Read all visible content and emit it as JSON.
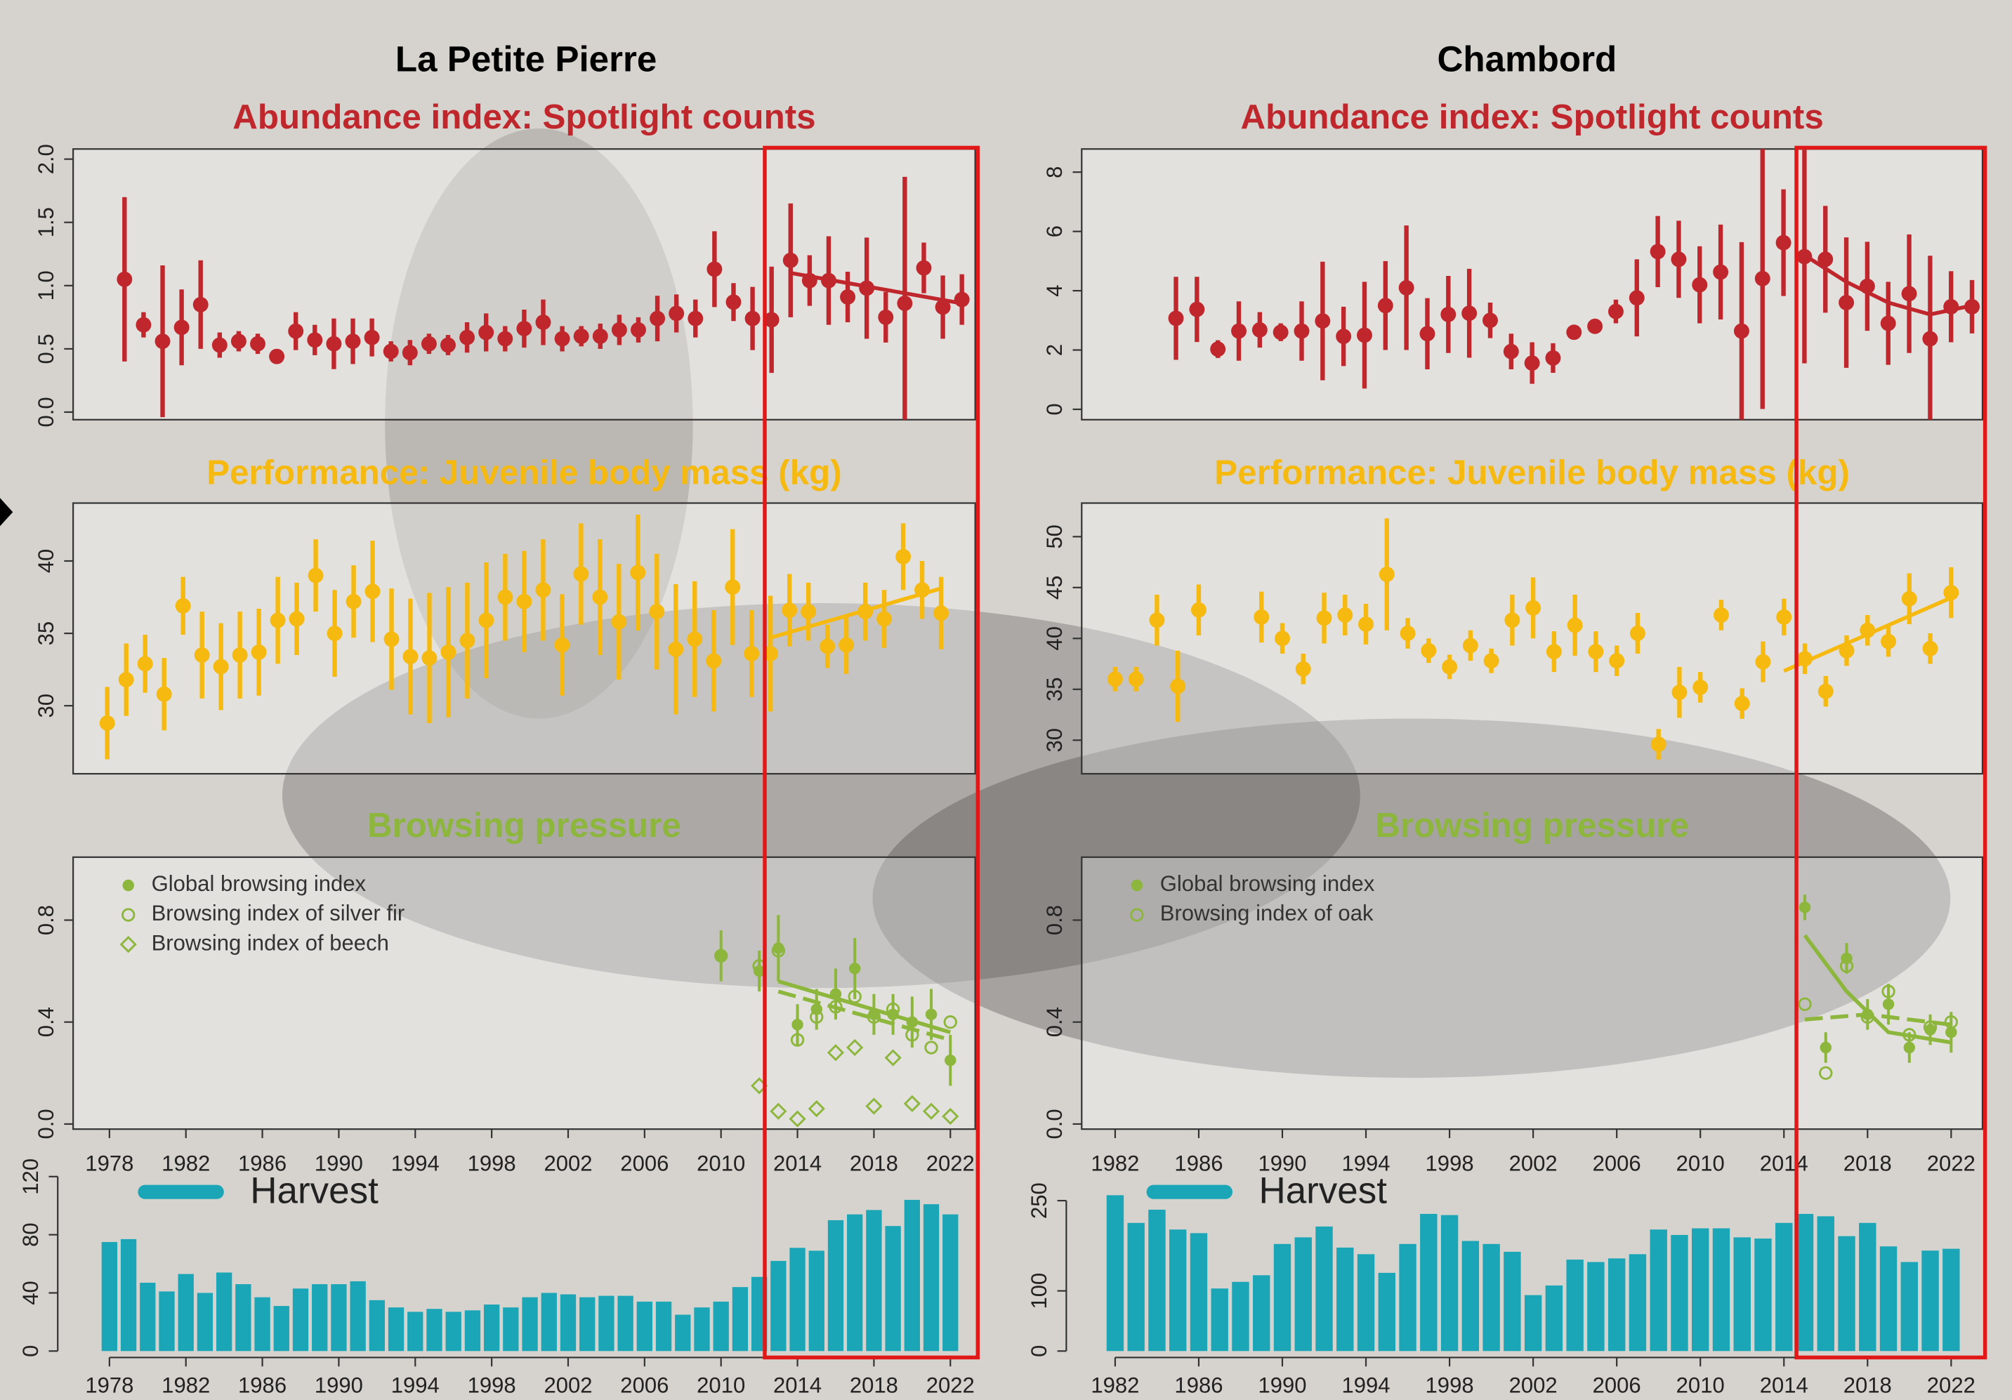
{
  "headers": [
    "La Petite Pierre",
    "Chambord"
  ],
  "chart_data": [
    {
      "type": "errorbar",
      "title": "Abundance index: Spotlight counts",
      "color": "#c0272d",
      "marker": "filled-circle",
      "x": [
        1978,
        1979,
        1980,
        1981,
        1982,
        1983,
        1984,
        1985,
        1986,
        1987,
        1988,
        1989,
        1990,
        1991,
        1992,
        1993,
        1994,
        1995,
        1996,
        1997,
        1998,
        1999,
        2000,
        2001,
        2002,
        2003,
        2004,
        2005,
        2006,
        2007,
        2008,
        2009,
        2010,
        2011,
        2012,
        2013,
        2014,
        2015,
        2016,
        2017,
        2018,
        2019,
        2020,
        2021,
        2022
      ],
      "values": [
        1.05,
        0.69,
        0.56,
        0.67,
        0.85,
        0.53,
        0.56,
        0.54,
        0.44,
        0.64,
        0.57,
        0.54,
        0.56,
        0.59,
        0.48,
        0.47,
        0.54,
        0.53,
        0.59,
        0.63,
        0.58,
        0.66,
        0.71,
        0.58,
        0.6,
        0.6,
        0.65,
        0.65,
        0.74,
        0.78,
        0.74,
        1.13,
        0.87,
        0.74,
        0.73,
        1.2,
        1.04,
        1.04,
        0.91,
        0.98,
        0.75,
        0.86,
        1.14,
        0.83,
        0.89
      ],
      "errors": [
        0.65,
        0.1,
        0.6,
        0.3,
        0.35,
        0.1,
        0.08,
        0.08,
        0.05,
        0.15,
        0.12,
        0.2,
        0.18,
        0.15,
        0.08,
        0.1,
        0.08,
        0.08,
        0.12,
        0.15,
        0.1,
        0.15,
        0.18,
        0.1,
        0.08,
        0.1,
        0.12,
        0.1,
        0.18,
        0.15,
        0.15,
        0.3,
        0.15,
        0.25,
        0.42,
        0.45,
        0.2,
        0.35,
        0.2,
        0.4,
        0.2,
        1.0,
        0.2,
        0.25,
        0.2
      ],
      "trend": {
        "x": [
          2013,
          2022
        ],
        "values": [
          1.1,
          0.86
        ]
      },
      "xlim": [
        1975.3,
        2022.7
      ],
      "ylim": [
        -0.06,
        2.08
      ],
      "yticks": [
        {
          "value": 0,
          "label": "0.0"
        },
        {
          "value": 0.5,
          "label": "0.5"
        },
        {
          "value": 1,
          "label": "1.0"
        },
        {
          "value": 1.5,
          "label": "1.5"
        },
        {
          "value": 2,
          "label": "2.0"
        }
      ]
    },
    {
      "type": "errorbar",
      "title": "Performance: Juvenile body mass (kg)",
      "color": "#f5b90f",
      "marker": "filled-circle",
      "x": [
        1978,
        1979,
        1980,
        1981,
        1982,
        1983,
        1984,
        1985,
        1986,
        1987,
        1988,
        1989,
        1990,
        1991,
        1992,
        1993,
        1994,
        1995,
        1996,
        1997,
        1998,
        1999,
        2000,
        2001,
        2002,
        2003,
        2004,
        2005,
        2006,
        2007,
        2008,
        2009,
        2010,
        2011,
        2012,
        2013,
        2014,
        2015,
        2016,
        2017,
        2018,
        2019,
        2020,
        2021,
        2022
      ],
      "values": [
        28.8,
        31.8,
        32.9,
        30.8,
        36.9,
        33.5,
        32.7,
        33.5,
        33.7,
        35.9,
        36.0,
        39.0,
        35.0,
        37.2,
        37.9,
        34.6,
        33.4,
        33.3,
        33.7,
        34.5,
        35.9,
        37.5,
        37.2,
        38,
        34.2,
        39.1,
        37.5,
        35.8,
        39.2,
        36.5,
        33.9,
        34.6,
        33.1,
        38.2,
        33.6,
        33.6,
        36.6,
        36.5,
        34.1,
        34.2,
        36.5,
        36.0,
        40.3,
        38,
        36.4
      ],
      "errors": [
        2.5,
        2.5,
        2,
        2.5,
        2,
        3,
        3,
        3,
        3,
        3,
        2.5,
        2.5,
        3,
        2.5,
        3.5,
        3.5,
        4,
        4.5,
        4.5,
        4,
        4,
        3,
        3.5,
        3.5,
        3.5,
        3.5,
        4,
        4,
        4,
        4,
        4.5,
        4,
        3.5,
        4,
        3,
        4,
        2.5,
        2,
        1.5,
        2,
        2,
        2,
        2.3,
        2,
        2.5
      ],
      "trend": {
        "x": [
          2013,
          2022
        ],
        "values": [
          34.7,
          38.1
        ]
      },
      "xlim": [
        1976.2,
        2023.8
      ],
      "ylim": [
        25.3,
        44.0
      ],
      "yticks": [
        30,
        35,
        40
      ]
    },
    {
      "type": "errorbar",
      "title": "Browsing pressure",
      "legend": "upper left",
      "xlim": [
        1976.1,
        2023.3
      ],
      "ylim": [
        -0.02,
        1.047
      ],
      "xticks": [
        1978,
        1982,
        1986,
        1990,
        1994,
        1998,
        2002,
        2006,
        2010,
        2014,
        2018,
        2022
      ],
      "yticks": [
        {
          "value": 0,
          "label": "0.0"
        },
        {
          "value": 0.4,
          "label": "0.4"
        },
        {
          "value": 0.8,
          "label": "0.8"
        }
      ],
      "series": [
        {
          "name": "Global browsing index",
          "color": "#8cb63c",
          "marker": "filled-circle",
          "x": [
            2010,
            2012,
            2013,
            2014,
            2015,
            2016,
            2017,
            2018,
            2019,
            2020,
            2021,
            2022
          ],
          "values": [
            0.66,
            0.6,
            0.69,
            0.39,
            0.45,
            0.51,
            0.61,
            0.43,
            0.43,
            0.4,
            0.43,
            0.25
          ],
          "errors": [
            0.1,
            0.08,
            0.13,
            0.08,
            0.08,
            0.1,
            0.12,
            0.08,
            0.08,
            0.1,
            0.1,
            0.1
          ],
          "trend": {
            "x": [
              2013,
              2022
            ],
            "values": [
              0.56,
              0.36
            ]
          }
        },
        {
          "name": "Browsing index of silver fir",
          "color": "#8cb63c",
          "marker": "open-circle",
          "trend_dash": true,
          "x": [
            2010,
            2012,
            2013,
            2014,
            2015,
            2016,
            2017,
            2018,
            2019,
            2020,
            2021,
            2022
          ],
          "values": [
            0.66,
            0.62,
            0.68,
            0.33,
            0.42,
            0.46,
            0.5,
            0.42,
            0.45,
            0.35,
            0.3,
            0.4
          ],
          "trend": {
            "x": [
              2013,
              2022
            ],
            "values": [
              0.52,
              0.33
            ]
          }
        },
        {
          "name": "Browsing index of beech",
          "color": "#8cb63c",
          "marker": "open-diamond",
          "x": [
            2012,
            2013,
            2014,
            2015,
            2016,
            2017,
            2018,
            2019,
            2020,
            2021,
            2022
          ],
          "values": [
            0.15,
            0.05,
            0.02,
            0.06,
            0.28,
            0.3,
            0.07,
            0.26,
            0.08,
            0.05,
            0.03
          ]
        }
      ]
    },
    {
      "type": "bar",
      "legend": "upper left",
      "x": [
        1978,
        1979,
        1980,
        1981,
        1982,
        1983,
        1984,
        1985,
        1986,
        1987,
        1988,
        1989,
        1990,
        1991,
        1992,
        1993,
        1994,
        1995,
        1996,
        1997,
        1998,
        1999,
        2000,
        2001,
        2002,
        2003,
        2004,
        2005,
        2006,
        2007,
        2008,
        2009,
        2010,
        2011,
        2012,
        2013,
        2014,
        2015,
        2016,
        2017,
        2018,
        2019,
        2020,
        2021,
        2022
      ],
      "series": [
        {
          "name": "Harvest",
          "color": "#1aa6b7",
          "values": [
            75,
            77,
            47,
            41,
            53,
            40,
            54,
            46,
            37,
            31,
            43,
            46,
            46,
            48,
            35,
            30,
            27,
            29,
            27,
            28,
            32,
            30,
            37,
            40,
            39,
            37,
            38,
            38,
            34,
            34,
            25,
            30,
            34,
            44,
            51,
            62,
            71,
            69,
            90,
            94,
            97,
            86,
            104,
            101,
            94
          ]
        }
      ],
      "xlim": [
        1976.1,
        2023.3
      ],
      "ylim": [
        0,
        120
      ],
      "xticks": [
        1978,
        1982,
        1986,
        1990,
        1994,
        1998,
        2002,
        2006,
        2010,
        2014,
        2018,
        2022
      ],
      "yticks": [
        0,
        40,
        80,
        120
      ]
    },
    {
      "type": "errorbar",
      "title": "Abundance index: Spotlight counts",
      "color": "#c0272d",
      "marker": "filled-circle",
      "x": [
        1984,
        1985,
        1986,
        1987,
        1988,
        1989,
        1990,
        1991,
        1992,
        1993,
        1994,
        1995,
        1996,
        1997,
        1998,
        1999,
        2000,
        2001,
        2002,
        2003,
        2004,
        2005,
        2006,
        2007,
        2008,
        2009,
        2010,
        2011,
        2012,
        2013,
        2014,
        2015,
        2016,
        2017,
        2018,
        2019,
        2020,
        2021,
        2022
      ],
      "values": [
        3.07,
        3.37,
        2.03,
        2.64,
        2.68,
        2.6,
        2.64,
        2.98,
        2.46,
        2.5,
        3.5,
        4.1,
        2.55,
        3.2,
        3.24,
        3.0,
        1.95,
        1.56,
        1.73,
        2.6,
        2.8,
        3.3,
        3.76,
        5.32,
        5.06,
        4.2,
        4.63,
        2.64,
        4.41,
        5.62,
        5.15,
        5.06,
        3.6,
        4.15,
        2.9,
        3.9,
        2.38,
        3.46,
        3.46
      ],
      "errors": [
        1.4,
        1.1,
        0.3,
        1.0,
        0.6,
        0.3,
        1.0,
        2.0,
        1.0,
        1.8,
        1.5,
        2.1,
        1.2,
        1.3,
        1.5,
        0.6,
        0.6,
        0.7,
        0.5,
        0.2,
        0.15,
        0.4,
        1.3,
        1.2,
        1.3,
        1.3,
        1.6,
        3.0,
        4.4,
        1.8,
        3.6,
        1.8,
        2.2,
        1.5,
        1.4,
        2.0,
        2.8,
        1.2,
        0.9
      ],
      "trend": {
        "x": [
          2014,
          2016,
          2018,
          2020,
          2022
        ],
        "values": [
          5.2,
          4.3,
          3.6,
          3.2,
          3.5
        ]
      },
      "xlim": [
        1979.5,
        2022.5
      ],
      "ylim": [
        -0.35,
        8.78
      ],
      "yticks": [
        0,
        2,
        4,
        6,
        8
      ]
    },
    {
      "type": "errorbar",
      "title": "Performance: Juvenile body mass (kg)",
      "color": "#f5b90f",
      "marker": "filled-circle",
      "x": [
        1982,
        1983,
        1984,
        1985,
        1986,
        1989,
        1990,
        1991,
        1992,
        1993,
        1994,
        1995,
        1996,
        1997,
        1998,
        1999,
        2000,
        2001,
        2002,
        2003,
        2004,
        2005,
        2006,
        2007,
        2008,
        2009,
        2010,
        2011,
        2012,
        2013,
        2014,
        2015,
        2016,
        2017,
        2018,
        2019,
        2020,
        2021,
        2022
      ],
      "values": [
        36,
        36,
        41.8,
        35.3,
        42.8,
        42.1,
        40,
        37,
        42,
        42.3,
        41.4,
        46.3,
        40.5,
        38.8,
        37.2,
        39.3,
        37.8,
        41.8,
        43,
        38.7,
        41.3,
        38.7,
        37.8,
        40.5,
        29.6,
        34.7,
        35.2,
        42.3,
        33.6,
        37.7,
        42.1,
        38,
        34.8,
        38.8,
        40.8,
        39.7,
        43.9,
        39,
        44.5
      ],
      "errors": [
        1.2,
        1.2,
        2.5,
        3.5,
        2.5,
        2.5,
        1.5,
        1.5,
        2.5,
        2,
        2,
        5.5,
        1.5,
        1.2,
        1.2,
        1.5,
        1.2,
        2.5,
        3,
        2,
        3,
        2,
        1.5,
        2,
        1.5,
        2.5,
        1.5,
        1.5,
        1.5,
        2,
        1.8,
        1.5,
        1.5,
        1.5,
        1.5,
        1.5,
        2.5,
        1.5,
        2.5
      ],
      "trend": {
        "x": [
          2014,
          2022
        ],
        "values": [
          36.8,
          44
        ]
      },
      "xlim": [
        1980.4,
        2023.5
      ],
      "ylim": [
        26.7,
        53.3
      ],
      "yticks": [
        30,
        35,
        40,
        45,
        50
      ]
    },
    {
      "type": "errorbar",
      "title": "Browsing pressure",
      "legend": "upper left",
      "xlim": [
        1980.4,
        2023.5
      ],
      "ylim": [
        -0.02,
        1.047
      ],
      "xticks": [
        1982,
        1986,
        1990,
        1994,
        1998,
        2002,
        2006,
        2010,
        2014,
        2018,
        2022
      ],
      "yticks": [
        {
          "value": 0,
          "label": "0.0"
        },
        {
          "value": 0.4,
          "label": "0.4"
        },
        {
          "value": 0.8,
          "label": "0.8"
        }
      ],
      "series": [
        {
          "name": "Global browsing index",
          "color": "#8cb63c",
          "marker": "filled-circle",
          "x": [
            2015,
            2016,
            2017,
            2018,
            2019,
            2020,
            2021,
            2022
          ],
          "values": [
            0.85,
            0.3,
            0.65,
            0.43,
            0.47,
            0.3,
            0.37,
            0.36
          ],
          "errors": [
            0.05,
            0.06,
            0.06,
            0.06,
            0.08,
            0.06,
            0.06,
            0.08
          ],
          "trend": {
            "x": [
              2015,
              2017,
              2019,
              2022
            ],
            "values": [
              0.74,
              0.52,
              0.36,
              0.32
            ]
          }
        },
        {
          "name": "Browsing index of oak",
          "color": "#8cb63c",
          "marker": "open-circle",
          "trend_dash": true,
          "x": [
            2015,
            2016,
            2017,
            2018,
            2019,
            2020,
            2021,
            2022
          ],
          "values": [
            0.47,
            0.2,
            0.62,
            0.42,
            0.52,
            0.35,
            0.38,
            0.4
          ],
          "trend": {
            "x": [
              2015,
              2018,
              2022
            ],
            "values": [
              0.41,
              0.43,
              0.39
            ]
          }
        }
      ]
    },
    {
      "type": "bar",
      "legend": "upper left",
      "x": [
        1982,
        1983,
        1984,
        1985,
        1986,
        1987,
        1988,
        1989,
        1990,
        1991,
        1992,
        1993,
        1994,
        1995,
        1996,
        1997,
        1998,
        1999,
        2000,
        2001,
        2002,
        2003,
        2004,
        2005,
        2006,
        2007,
        2008,
        2009,
        2010,
        2011,
        2012,
        2013,
        2014,
        2015,
        2016,
        2017,
        2018,
        2019,
        2020,
        2021,
        2022
      ],
      "series": [
        {
          "name": "Harvest",
          "color": "#1aa6b7",
          "values": [
            259,
            213,
            235,
            202,
            196,
            104,
            115,
            126,
            178,
            189,
            207,
            172,
            161,
            130,
            178,
            228,
            226,
            183,
            178,
            165,
            93,
            109,
            152,
            148,
            154,
            161,
            202,
            193,
            204,
            204,
            189,
            187,
            213,
            228,
            224,
            191,
            213,
            174,
            148,
            167,
            170
          ]
        }
      ],
      "xlim": [
        1980.4,
        2023.5
      ],
      "ylim": [
        0,
        290
      ],
      "xticks": [
        1982,
        1986,
        1990,
        1994,
        1998,
        2002,
        2006,
        2010,
        2014,
        2018,
        2022
      ],
      "yticks": [
        0,
        100,
        250
      ]
    }
  ]
}
